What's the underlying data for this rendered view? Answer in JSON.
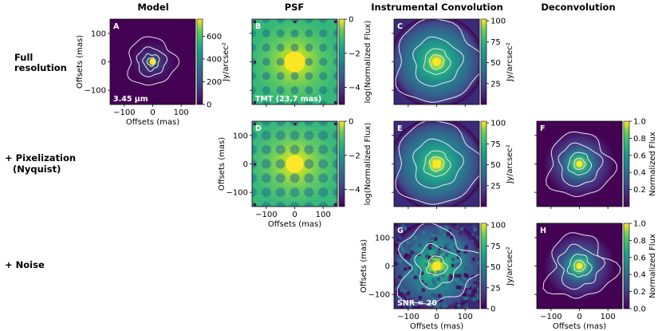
{
  "figure": {
    "columns": [
      "Model",
      "PSF",
      "Instrumental Convolution",
      "Deconvolution"
    ],
    "rows": [
      "Full\nresolution",
      "+ Pixelization\n(Nyquist)",
      "+ Noise"
    ],
    "colors": {
      "viridis_low": "#440154",
      "viridis_high": "#fde725",
      "contour": "#e8e6f0"
    }
  },
  "chart_data": [
    {
      "id": "A",
      "type": "heatmap",
      "title": "Model",
      "inset_text": "3.45 μm",
      "xlabel": "Offsets (mas)",
      "ylabel": "Offsets (mas)",
      "xlim": [
        -150,
        150
      ],
      "ylim": [
        -150,
        150
      ],
      "xticks": [
        "−100",
        "0",
        "100"
      ],
      "yticks": [
        "100",
        "0",
        "−100"
      ],
      "colorbar": {
        "label": "Jy/arcsec²",
        "ticks": [
          "0",
          "200",
          "400",
          "600"
        ],
        "range": [
          0,
          750
        ]
      }
    },
    {
      "id": "B",
      "type": "heatmap",
      "title": "PSF",
      "inset_text": "TMT (23.7 mas)",
      "xlim": [
        -150,
        150
      ],
      "ylim": [
        -150,
        150
      ],
      "colorbar": {
        "label": "log(Normalized Flux)",
        "ticks": [
          "0",
          "−2",
          "−4"
        ],
        "range": [
          -5,
          0
        ]
      }
    },
    {
      "id": "C",
      "type": "heatmap",
      "title": "Instrumental Convolution",
      "xlim": [
        -150,
        150
      ],
      "ylim": [
        -150,
        150
      ],
      "colorbar": {
        "label": "Jy/arcsec²",
        "ticks": [
          "100",
          "75",
          "50",
          "25"
        ],
        "range": [
          0,
          102
        ]
      }
    },
    {
      "id": "D",
      "type": "heatmap",
      "xlabel": "Offsets (mas)",
      "ylabel": "Offsets (mas)",
      "xlim": [
        -150,
        150
      ],
      "ylim": [
        -150,
        150
      ],
      "xticks": [
        "−100",
        "0",
        "100"
      ],
      "yticks": [
        "100",
        "0",
        "−100"
      ],
      "colorbar": {
        "label": "log(Normalized Flux)",
        "ticks": [
          "0",
          "−2",
          "−4"
        ],
        "range": [
          -5,
          0
        ]
      }
    },
    {
      "id": "E",
      "type": "heatmap",
      "xlim": [
        -150,
        150
      ],
      "ylim": [
        -150,
        150
      ],
      "colorbar": {
        "label": "Jy/arcsec²",
        "ticks": [
          "100",
          "75",
          "50",
          "25"
        ],
        "range": [
          0,
          102
        ]
      }
    },
    {
      "id": "F",
      "type": "heatmap",
      "title": "Deconvolution",
      "xlim": [
        -150,
        150
      ],
      "ylim": [
        -150,
        150
      ],
      "colorbar": {
        "label": "Normalized Flux",
        "ticks": [
          "1.0",
          "0.8",
          "0.6",
          "0.4",
          "0.2"
        ],
        "range": [
          0,
          1
        ]
      }
    },
    {
      "id": "G",
      "type": "heatmap",
      "inset_text": "SNR = 20",
      "xlabel": "Offsets (mas)",
      "ylabel": "Offsets (mas)",
      "xlim": [
        -150,
        150
      ],
      "ylim": [
        -150,
        150
      ],
      "xticks": [
        "−100",
        "0",
        "100"
      ],
      "yticks": [
        "100",
        "0",
        "−100"
      ],
      "colorbar": {
        "label": "Jy/arcsec²",
        "ticks": [
          "100",
          "75",
          "50",
          "25",
          "0"
        ],
        "range": [
          0,
          102
        ]
      }
    },
    {
      "id": "H",
      "type": "heatmap",
      "xlabel": "Offsets (mas)",
      "xlim": [
        -150,
        150
      ],
      "ylim": [
        -150,
        150
      ],
      "xticks": [
        "−100",
        "0",
        "100"
      ],
      "colorbar": {
        "label": "Normalized Flux",
        "ticks": [
          "1.0",
          "0.8",
          "0.6",
          "0.4",
          "0.2",
          "0.0"
        ],
        "range": [
          0,
          1
        ]
      }
    }
  ]
}
